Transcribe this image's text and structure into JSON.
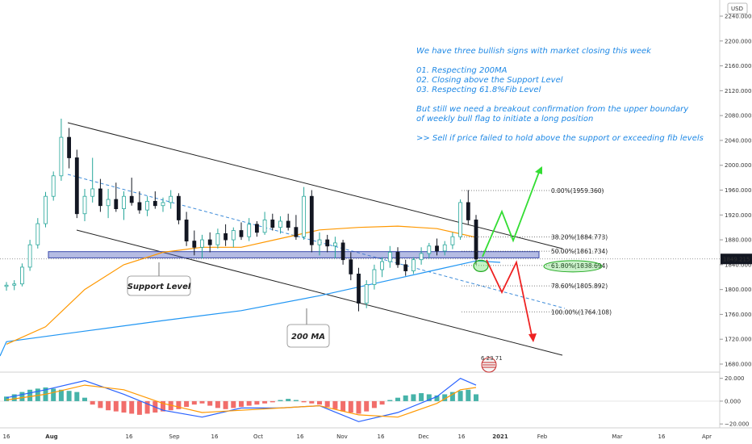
{
  "currency": "USD",
  "price_badge": "1849.215",
  "colors": {
    "up": "#26a69a",
    "down": "#131722",
    "ma_slow": "#2196f3",
    "ma_fast": "#ff9800",
    "support_zone": "#5c6bc0",
    "bull_arrow": "#33dd33",
    "bear_arrow": "#ee2222",
    "note": "#1e88e5",
    "macd_pos": "#26a69a",
    "macd_neg": "#ef5350"
  },
  "annotation": {
    "lines": [
      "We have three bullish signs with market closing this week",
      "",
      "01. Respecting 200MA",
      "02. Closing above the Support Level",
      "03. Respecting 61.8%Fib Level",
      "",
      "But still we need a breakout confirmation from the upper boundary",
      "of weekly bull flag to initiate a long position",
      "",
      ">> Sell if price failed to hold above the support or exceeding fib levels"
    ]
  },
  "callouts": {
    "support": "Support Level",
    "ma200": "200 MA"
  },
  "event_label": "6 23 71",
  "chart_data": {
    "type": "candlestick",
    "y_axis": {
      "unit": "USD",
      "range": [
        1660,
        2260
      ],
      "ticks": [
        2240,
        2200,
        2160,
        2120,
        2080,
        2040,
        2000,
        1960,
        1920,
        1880,
        1840,
        1800,
        1760,
        1720,
        1680
      ],
      "tick_labels": [
        "2240.000",
        "2200.000",
        "2160.000",
        "2120.000",
        "2080.000",
        "2040.000",
        "2000.000",
        "1960.000",
        "1920.000",
        "1880.000",
        "1840.000",
        "1800.000",
        "1760.000",
        "1720.000",
        "1680.000"
      ]
    },
    "x_axis": {
      "tick_labels": [
        "16",
        "Aug",
        "16",
        "Sep",
        "16",
        "Oct",
        "16",
        "Nov",
        "16",
        "Dec",
        "16",
        "2021",
        "Feb",
        "Mar",
        "16",
        "Apr"
      ],
      "range": [
        0,
        180
      ]
    },
    "candles": [
      {
        "t": 0,
        "o": 1805,
        "h": 1812,
        "l": 1798,
        "c": 1807
      },
      {
        "t": 2,
        "o": 1807,
        "h": 1815,
        "l": 1799,
        "c": 1809
      },
      {
        "t": 4,
        "o": 1809,
        "h": 1842,
        "l": 1805,
        "c": 1836
      },
      {
        "t": 6,
        "o": 1836,
        "h": 1880,
        "l": 1830,
        "c": 1872
      },
      {
        "t": 8,
        "o": 1872,
        "h": 1915,
        "l": 1866,
        "c": 1906
      },
      {
        "t": 10,
        "o": 1906,
        "h": 1957,
        "l": 1900,
        "c": 1950
      },
      {
        "t": 12,
        "o": 1950,
        "h": 1990,
        "l": 1943,
        "c": 1983
      },
      {
        "t": 14,
        "o": 1983,
        "h": 2075,
        "l": 1975,
        "c": 2045
      },
      {
        "t": 16,
        "o": 2045,
        "h": 2060,
        "l": 1995,
        "c": 2012
      },
      {
        "t": 18,
        "o": 2012,
        "h": 2025,
        "l": 1915,
        "c": 1922
      },
      {
        "t": 20,
        "o": 1922,
        "h": 1962,
        "l": 1910,
        "c": 1950
      },
      {
        "t": 22,
        "o": 1950,
        "h": 2012,
        "l": 1940,
        "c": 1962
      },
      {
        "t": 24,
        "o": 1962,
        "h": 1978,
        "l": 1925,
        "c": 1935
      },
      {
        "t": 26,
        "o": 1935,
        "h": 1962,
        "l": 1915,
        "c": 1945
      },
      {
        "t": 28,
        "o": 1945,
        "h": 1972,
        "l": 1925,
        "c": 1930
      },
      {
        "t": 30,
        "o": 1930,
        "h": 1958,
        "l": 1912,
        "c": 1950
      },
      {
        "t": 32,
        "o": 1950,
        "h": 1980,
        "l": 1935,
        "c": 1940
      },
      {
        "t": 34,
        "o": 1940,
        "h": 1958,
        "l": 1922,
        "c": 1928
      },
      {
        "t": 36,
        "o": 1928,
        "h": 1950,
        "l": 1918,
        "c": 1942
      },
      {
        "t": 38,
        "o": 1942,
        "h": 1958,
        "l": 1930,
        "c": 1935
      },
      {
        "t": 40,
        "o": 1935,
        "h": 1948,
        "l": 1925,
        "c": 1940
      },
      {
        "t": 42,
        "o": 1940,
        "h": 1960,
        "l": 1930,
        "c": 1950
      },
      {
        "t": 44,
        "o": 1950,
        "h": 1955,
        "l": 1905,
        "c": 1912
      },
      {
        "t": 46,
        "o": 1912,
        "h": 1925,
        "l": 1870,
        "c": 1878
      },
      {
        "t": 48,
        "o": 1878,
        "h": 1895,
        "l": 1855,
        "c": 1868
      },
      {
        "t": 50,
        "o": 1868,
        "h": 1888,
        "l": 1850,
        "c": 1880
      },
      {
        "t": 52,
        "o": 1880,
        "h": 1892,
        "l": 1860,
        "c": 1872
      },
      {
        "t": 54,
        "o": 1872,
        "h": 1898,
        "l": 1866,
        "c": 1890
      },
      {
        "t": 56,
        "o": 1890,
        "h": 1905,
        "l": 1870,
        "c": 1880
      },
      {
        "t": 58,
        "o": 1880,
        "h": 1900,
        "l": 1868,
        "c": 1895
      },
      {
        "t": 60,
        "o": 1895,
        "h": 1908,
        "l": 1880,
        "c": 1885
      },
      {
        "t": 62,
        "o": 1885,
        "h": 1915,
        "l": 1878,
        "c": 1905
      },
      {
        "t": 64,
        "o": 1905,
        "h": 1910,
        "l": 1885,
        "c": 1892
      },
      {
        "t": 66,
        "o": 1892,
        "h": 1925,
        "l": 1888,
        "c": 1912
      },
      {
        "t": 68,
        "o": 1912,
        "h": 1922,
        "l": 1895,
        "c": 1900
      },
      {
        "t": 70,
        "o": 1900,
        "h": 1918,
        "l": 1890,
        "c": 1910
      },
      {
        "t": 72,
        "o": 1910,
        "h": 1922,
        "l": 1895,
        "c": 1900
      },
      {
        "t": 74,
        "o": 1900,
        "h": 1920,
        "l": 1880,
        "c": 1885
      },
      {
        "t": 76,
        "o": 1885,
        "h": 1965,
        "l": 1880,
        "c": 1950
      },
      {
        "t": 78,
        "o": 1950,
        "h": 1960,
        "l": 1860,
        "c": 1872
      },
      {
        "t": 80,
        "o": 1872,
        "h": 1892,
        "l": 1855,
        "c": 1880
      },
      {
        "t": 82,
        "o": 1880,
        "h": 1888,
        "l": 1860,
        "c": 1870
      },
      {
        "t": 84,
        "o": 1870,
        "h": 1885,
        "l": 1850,
        "c": 1875
      },
      {
        "t": 86,
        "o": 1875,
        "h": 1880,
        "l": 1840,
        "c": 1848
      },
      {
        "t": 88,
        "o": 1848,
        "h": 1860,
        "l": 1815,
        "c": 1825
      },
      {
        "t": 90,
        "o": 1825,
        "h": 1835,
        "l": 1765,
        "c": 1778
      },
      {
        "t": 92,
        "o": 1778,
        "h": 1815,
        "l": 1770,
        "c": 1808
      },
      {
        "t": 94,
        "o": 1808,
        "h": 1840,
        "l": 1800,
        "c": 1832
      },
      {
        "t": 96,
        "o": 1832,
        "h": 1852,
        "l": 1820,
        "c": 1845
      },
      {
        "t": 98,
        "o": 1845,
        "h": 1870,
        "l": 1835,
        "c": 1860
      },
      {
        "t": 100,
        "o": 1860,
        "h": 1868,
        "l": 1835,
        "c": 1840
      },
      {
        "t": 102,
        "o": 1840,
        "h": 1848,
        "l": 1822,
        "c": 1830
      },
      {
        "t": 104,
        "o": 1830,
        "h": 1852,
        "l": 1825,
        "c": 1848
      },
      {
        "t": 106,
        "o": 1848,
        "h": 1868,
        "l": 1840,
        "c": 1858
      },
      {
        "t": 108,
        "o": 1858,
        "h": 1875,
        "l": 1850,
        "c": 1870
      },
      {
        "t": 110,
        "o": 1870,
        "h": 1882,
        "l": 1855,
        "c": 1862
      },
      {
        "t": 112,
        "o": 1862,
        "h": 1878,
        "l": 1855,
        "c": 1872
      },
      {
        "t": 114,
        "o": 1872,
        "h": 1892,
        "l": 1865,
        "c": 1885
      },
      {
        "t": 116,
        "o": 1885,
        "h": 1945,
        "l": 1880,
        "c": 1940
      },
      {
        "t": 118,
        "o": 1940,
        "h": 1960,
        "l": 1905,
        "c": 1912
      },
      {
        "t": 120,
        "o": 1912,
        "h": 1920,
        "l": 1840,
        "c": 1849
      }
    ],
    "series": [
      {
        "name": "200 MA",
        "values": [
          [
            0,
            1716
          ],
          [
            20,
            1733
          ],
          [
            40,
            1750
          ],
          [
            60,
            1766
          ],
          [
            80,
            1790
          ],
          [
            100,
            1818
          ],
          [
            110,
            1832
          ],
          [
            120,
            1846
          ]
        ]
      },
      {
        "name": "",
        "values": [
          [
            0,
            1712
          ],
          [
            10,
            1740
          ],
          [
            20,
            1800
          ],
          [
            30,
            1840
          ],
          [
            40,
            1860
          ],
          [
            50,
            1868
          ],
          [
            60,
            1868
          ],
          [
            70,
            1882
          ],
          [
            80,
            1896
          ],
          [
            90,
            1900
          ],
          [
            100,
            1902
          ],
          [
            110,
            1898
          ],
          [
            120,
            1884
          ]
        ]
      }
    ],
    "support_zone": [
      1851,
      1861
    ],
    "fib_levels": [
      {
        "label": "0.00%(1959.360)",
        "value": 1959.36
      },
      {
        "label": "38.20%(1884.773)",
        "value": 1884.773
      },
      {
        "label": "50.00%(1861.734)",
        "value": 1861.734
      },
      {
        "label": "61.80%(1838.694)",
        "value": 1838.694
      },
      {
        "label": "78.60%(1805.892)",
        "value": 1805.892
      },
      {
        "label": "100.00%(1764.108)",
        "value": 1764.108
      }
    ],
    "macd": {
      "y_ticks": [
        20,
        0,
        -20
      ],
      "tick_labels": [
        "20.000",
        "0.000",
        "−20.000"
      ],
      "range": [
        -22,
        24
      ],
      "hist": [
        4,
        6,
        8,
        10,
        11,
        12,
        11,
        10,
        9,
        8,
        3,
        -3,
        -6,
        -8,
        -9,
        -10,
        -11,
        -12,
        -11,
        -10,
        -9,
        -8,
        -7,
        -5,
        -3,
        -2,
        -4,
        -6,
        -7,
        -6,
        -5,
        -4,
        -3,
        -2,
        -1,
        1,
        2,
        1,
        -1,
        -2,
        -3,
        -5,
        -7,
        -9,
        -10,
        -11,
        -9,
        -6,
        -3,
        1,
        3,
        5,
        6,
        7,
        6,
        5,
        6,
        8,
        9,
        10,
        6
      ],
      "macd_line": [
        [
          0,
          3
        ],
        [
          10,
          10
        ],
        [
          20,
          18
        ],
        [
          30,
          6
        ],
        [
          40,
          -8
        ],
        [
          50,
          -14
        ],
        [
          60,
          -6
        ],
        [
          70,
          -6
        ],
        [
          80,
          -4
        ],
        [
          90,
          -18
        ],
        [
          100,
          -10
        ],
        [
          110,
          4
        ],
        [
          116,
          20
        ],
        [
          120,
          14
        ]
      ],
      "signal_line": [
        [
          0,
          1
        ],
        [
          10,
          6
        ],
        [
          20,
          14
        ],
        [
          30,
          10
        ],
        [
          40,
          -2
        ],
        [
          50,
          -10
        ],
        [
          60,
          -8
        ],
        [
          70,
          -6
        ],
        [
          80,
          -4
        ],
        [
          90,
          -12
        ],
        [
          100,
          -14
        ],
        [
          110,
          -2
        ],
        [
          116,
          10
        ],
        [
          120,
          12
        ]
      ]
    }
  }
}
